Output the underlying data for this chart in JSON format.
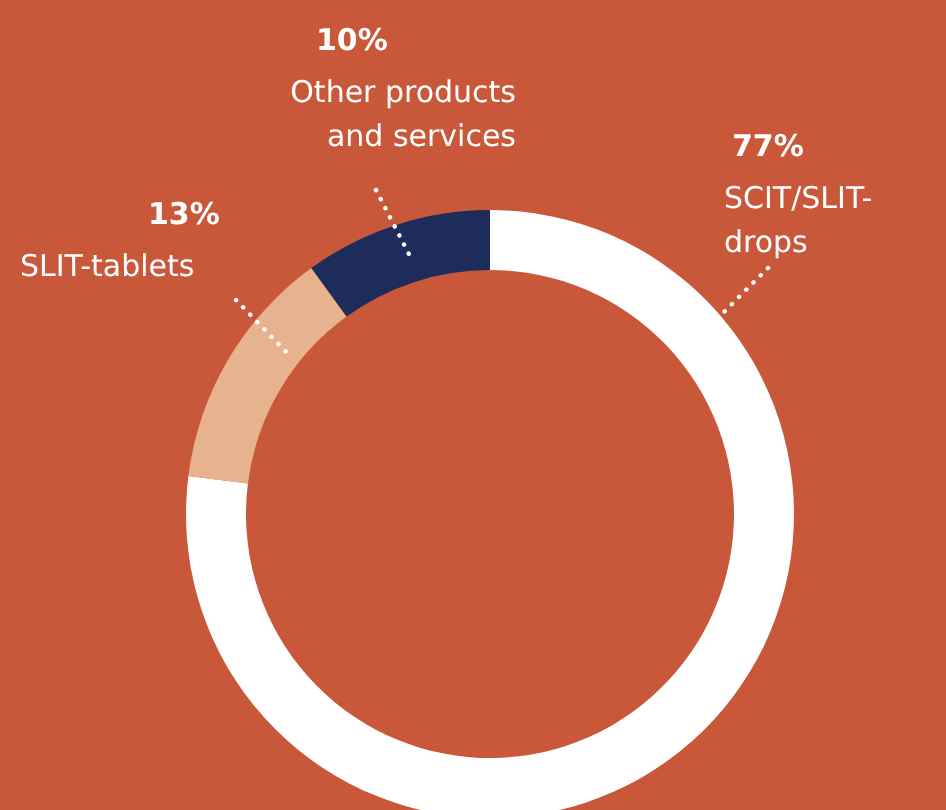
{
  "chart_data": {
    "type": "donut",
    "categories": [
      "SCIT/SLIT-drops",
      "SLIT-tablets",
      "Other products and services"
    ],
    "values": [
      77,
      13,
      10
    ],
    "colors": [
      "#ffffff",
      "#e7b28e",
      "#1d2c5a"
    ],
    "value_labels": [
      "77%",
      "13%",
      "10%"
    ]
  }
}
